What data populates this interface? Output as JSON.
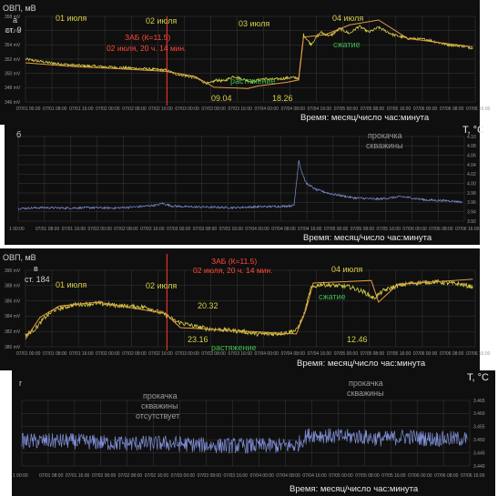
{
  "chart_data": [
    {
      "type": "line",
      "panel": "a",
      "ylabel": "ОВП, мВ",
      "station": "ст. 9",
      "xlabel": "Время: месяц/число час:минута",
      "y_ticks": [
        "358 mV",
        "356 mV",
        "354 mV",
        "352 mV",
        "350 mV",
        "348 mV",
        "346 mV"
      ],
      "ylim": [
        345,
        359
      ],
      "x_ticks": [
        "07/01 00:00",
        "07/01 08:00",
        "07/01 16:00",
        "07/02 00:00",
        "07/02 08:00",
        "07/02 16:00",
        "07/03 00:00",
        "07/03 08:00",
        "07/03 16:00",
        "07/04 00:00",
        "07/04 08:00",
        "07/04 16:00",
        "07/05 00:00",
        "07/05 08:00",
        "07/05 16:00",
        "07/06 00:00",
        "07/06 08:00",
        "07/06 16:00"
      ],
      "xlim": [
        0,
        18.6
      ],
      "day_labels": [
        "01 июля",
        "02 июля",
        "03 июля",
        "04 июля"
      ],
      "event_label": "ЗАБ (К=11.5)",
      "event_time": "02 июля, 20 ч. 14 мин.",
      "event_x": 5.85,
      "annotations": [
        "09.04",
        "18.26",
        "растяжение",
        "сжатие"
      ],
      "series": [
        {
          "values": [
            [
              0,
              352.0
            ],
            [
              1,
              351.4
            ],
            [
              2,
              351.0
            ],
            [
              3,
              350.8
            ],
            [
              4,
              350.6
            ],
            [
              5,
              350.4
            ],
            [
              5.8,
              350.2
            ],
            [
              6.2,
              349.6
            ],
            [
              6.6,
              349.3
            ],
            [
              7,
              349.0
            ],
            [
              7.4,
              348.2
            ],
            [
              7.6,
              348.0
            ],
            [
              7.9,
              348.6
            ],
            [
              8.2,
              348.4
            ],
            [
              8.6,
              349.2
            ],
            [
              9,
              348.7
            ],
            [
              9.4,
              348.3
            ],
            [
              9.8,
              348.8
            ],
            [
              10.2,
              348.7
            ],
            [
              10.6,
              348.8
            ],
            [
              11,
              349.0
            ],
            [
              11.3,
              348.9
            ],
            [
              11.5,
              356.0
            ],
            [
              11.8,
              354.4
            ],
            [
              12.2,
              356.4
            ],
            [
              12.6,
              355.8
            ],
            [
              13,
              357.0
            ],
            [
              13.4,
              356.2
            ],
            [
              13.8,
              357.4
            ],
            [
              14.2,
              356.4
            ],
            [
              14.6,
              357.2
            ],
            [
              15.2,
              356.0
            ],
            [
              15.8,
              355.4
            ],
            [
              16.6,
              355.2
            ],
            [
              17.4,
              354.4
            ],
            [
              18,
              354.2
            ],
            [
              18.5,
              353.8
            ]
          ]
        },
        {
          "values": [
            [
              0,
              351.4
            ],
            [
              2,
              350.8
            ],
            [
              4,
              350.4
            ],
            [
              5.8,
              350.0
            ],
            [
              7,
              349.2
            ],
            [
              7.8,
              347.4
            ],
            [
              9.2,
              347.2
            ],
            [
              9.6,
              347.6
            ],
            [
              10.8,
              348.2
            ],
            [
              11.3,
              348.6
            ],
            [
              11.5,
              355.6
            ],
            [
              12.4,
              356.0
            ],
            [
              13.4,
              357.6
            ],
            [
              14.6,
              358.4
            ],
            [
              15.8,
              355.4
            ],
            [
              18.5,
              354.0
            ]
          ]
        }
      ]
    },
    {
      "type": "line",
      "panel": "б",
      "ylabel": "T, °C",
      "xlabel": "Время: месяц/число час:минута",
      "y_ticks": [
        "4.10",
        "4.08",
        "4.06",
        "4.04",
        "4.02",
        "4.00",
        "3.98",
        "3.96",
        "3.94",
        "3.92"
      ],
      "ylim": [
        3.91,
        4.11
      ],
      "x_ticks": [
        "1 00:00",
        "07/01 08:00",
        "07/01 16:00",
        "07/02 00:00",
        "07/02 08:00",
        "07/02 16:00",
        "07/03 00:00",
        "07/03 08:00",
        "07/03 16:00",
        "07/04 00:00",
        "07/04 08:00",
        "07/04 16:00",
        "07/05 00:00",
        "07/05 08:00",
        "07/05 16:00",
        "07/06 00:00",
        "07/06 08:00",
        "07/06 16:00"
      ],
      "xlim": [
        0,
        18.6
      ],
      "annotation": "прокачка скважины",
      "series": [
        {
          "values": [
            [
              0,
              3.94
            ],
            [
              1,
              3.942
            ],
            [
              2,
              3.941
            ],
            [
              3,
              3.942
            ],
            [
              4,
              3.941
            ],
            [
              5,
              3.944
            ],
            [
              5.8,
              3.948
            ],
            [
              6.0,
              3.952
            ],
            [
              6.4,
              3.946
            ],
            [
              7,
              3.944
            ],
            [
              8,
              3.943
            ],
            [
              9,
              3.942
            ],
            [
              10,
              3.944
            ],
            [
              11,
              3.945
            ],
            [
              11.5,
              3.947
            ],
            [
              11.7,
              4.055
            ],
            [
              11.8,
              4.03
            ],
            [
              12,
              4.0
            ],
            [
              12.4,
              3.985
            ],
            [
              13,
              3.975
            ],
            [
              14,
              3.965
            ],
            [
              15,
              3.962
            ],
            [
              16,
              3.968
            ],
            [
              17,
              3.96
            ],
            [
              18,
              3.958
            ],
            [
              18.5,
              3.955
            ]
          ]
        }
      ]
    },
    {
      "type": "line",
      "panel": "в",
      "ylabel": "ОВП, мВ",
      "station": "ст. 184",
      "xlabel": "Время: месяц/число час:минута",
      "y_ticks": [
        "390 mV",
        "388 mV",
        "386 mV",
        "384 mV",
        "382 mV",
        "380 mV"
      ],
      "ylim": [
        379,
        391
      ],
      "x_ticks": [
        "07/01 00:00",
        "07/01 08:00",
        "07/01 16:00",
        "07/02 00:00",
        "07/02 08:00",
        "07/02 16:00",
        "07/03 00:00",
        "07/03 08:00",
        "07/03 16:00",
        "07/04 00:00",
        "07/04 08:00",
        "07/04 16:00",
        "07/05 00:00",
        "07/05 08:00",
        "07/05 16:00",
        "07/06 00:00",
        "07/06 08:00",
        "07/06 16:00"
      ],
      "xlim": [
        0,
        18.6
      ],
      "day_labels": [
        "01 июля",
        "02 июля",
        "04 июля"
      ],
      "event_label": "ЗАБ (К=11.5)",
      "event_time": "02 июля, 20 ч. 14 мин.",
      "event_x": 5.85,
      "annotations": [
        "20.32",
        "23.16",
        "растяжение",
        "сжатие",
        "12.46"
      ],
      "series": [
        {
          "values": [
            [
              0,
              380.8
            ],
            [
              0.4,
              381.8
            ],
            [
              0.8,
              383.6
            ],
            [
              1.2,
              384.8
            ],
            [
              2,
              385.6
            ],
            [
              3,
              385.8
            ],
            [
              4,
              385.4
            ],
            [
              5,
              385.2
            ],
            [
              5.8,
              384.0
            ],
            [
              6.2,
              383.0
            ],
            [
              6.6,
              382.6
            ],
            [
              7,
              382.2
            ],
            [
              7.6,
              381.8
            ],
            [
              8.4,
              381.6
            ],
            [
              9,
              381.4
            ],
            [
              9.6,
              381.0
            ],
            [
              10.2,
              381.0
            ],
            [
              10.8,
              381.2
            ],
            [
              11.2,
              381.6
            ],
            [
              11.5,
              383.8
            ],
            [
              11.8,
              388.2
            ],
            [
              12.2,
              388.8
            ],
            [
              12.8,
              388.6
            ],
            [
              13.4,
              388.4
            ],
            [
              14,
              387.6
            ],
            [
              14.4,
              386.6
            ],
            [
              14.8,
              387.8
            ],
            [
              15.4,
              388.6
            ],
            [
              16,
              389.0
            ],
            [
              17,
              389.2
            ],
            [
              18,
              388.8
            ],
            [
              18.5,
              388.4
            ]
          ]
        },
        {
          "values": [
            [
              0,
              380.2
            ],
            [
              0.6,
              383.6
            ],
            [
              1.4,
              385.4
            ],
            [
              3,
              386.0
            ],
            [
              5.8,
              384.2
            ],
            [
              6.4,
              382.0
            ],
            [
              11.2,
              381.0
            ],
            [
              11.6,
              384.8
            ],
            [
              11.9,
              389.0
            ],
            [
              14.3,
              389.4
            ],
            [
              14.6,
              386.0
            ],
            [
              15.4,
              388.8
            ],
            [
              18.5,
              389.6
            ]
          ]
        }
      ]
    },
    {
      "type": "line",
      "panel": "г",
      "ylabel": "T, °C",
      "xlabel": "Время: месяц/число час:минута",
      "y_ticks": [
        "3.465",
        "3.460",
        "3.455",
        "3.450",
        "3.445",
        "3.440"
      ],
      "ylim": [
        3.438,
        3.467
      ],
      "x_ticks": [
        "1 00:00",
        "07/01 08:00",
        "07/01 16:00",
        "07/02 00:00",
        "07/02 08:00",
        "07/02 16:00",
        "07/03 00:00",
        "07/03 08:00",
        "07/03 16:00",
        "07/04 00:00",
        "07/04 08:00",
        "07/04 16:00",
        "07/05 00:00",
        "07/05 08:00",
        "07/05 16:00",
        "07/06 00:00",
        "07/06 08:00",
        "07/06 16:00"
      ],
      "xlim": [
        0,
        18.6
      ],
      "annotations": [
        "прокачка скважины отсутствует",
        "прокачка скважины"
      ],
      "series": [
        {
          "values": [
            [
              0,
              3.449
            ],
            [
              2,
              3.449
            ],
            [
              4,
              3.448
            ],
            [
              6,
              3.448
            ],
            [
              8,
              3.447
            ],
            [
              10,
              3.447
            ],
            [
              11.4,
              3.447
            ],
            [
              11.6,
              3.449
            ],
            [
              11.8,
              3.451
            ],
            [
              12,
              3.452
            ],
            [
              13,
              3.451
            ],
            [
              14,
              3.451
            ],
            [
              15,
              3.45
            ],
            [
              16,
              3.451
            ],
            [
              17,
              3.45
            ],
            [
              18,
              3.45
            ],
            [
              18.5,
              3.45
            ]
          ]
        }
      ]
    }
  ],
  "colors": {
    "background": "#0f0f0f",
    "yellow_trace": "#d8cf46",
    "blue_trace": "#7f8fd6",
    "envelope": "#e79a4a",
    "event_line": "#e0312b",
    "event_text": "#ff4a3a",
    "green_text": "#3fb950",
    "grey_text": "#9a9a9a"
  }
}
